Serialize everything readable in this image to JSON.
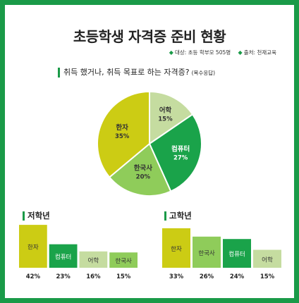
{
  "header": {
    "title": "초등학생 자격증 준비 현황",
    "meta": [
      {
        "label": "대상: 초등 학부모 505명"
      },
      {
        "label": "출처: 천재교육"
      }
    ],
    "question": "취득 했거나, 취득 목표로 하는 자격증?",
    "question_note": "(복수응답)"
  },
  "chart_data": [
    {
      "type": "pie",
      "title": "취득 했거나, 취득 목표로 하는 자격증?",
      "categories": [
        "어학",
        "컴퓨터",
        "한국사",
        "한자"
      ],
      "values": [
        15,
        27,
        20,
        35
      ],
      "labels": [
        "15%",
        "27%",
        "20%",
        "35%"
      ],
      "colors": [
        "#c5dca0",
        "#1aa34a",
        "#8fcc5a",
        "#cccc14"
      ]
    },
    {
      "type": "bar",
      "title": "저학년",
      "categories": [
        "한자",
        "컴퓨터",
        "어학",
        "한국사"
      ],
      "values": [
        42,
        23,
        16,
        15
      ],
      "labels": [
        "42%",
        "23%",
        "16%",
        "15%"
      ],
      "colors": [
        "#cccc14",
        "#1aa34a",
        "#c5dca0",
        "#8fcc5a"
      ]
    },
    {
      "type": "bar",
      "title": "고학년",
      "categories": [
        "한자",
        "한국사",
        "컴퓨터",
        "어학"
      ],
      "values": [
        33,
        26,
        24,
        15
      ],
      "labels": [
        "33%",
        "26%",
        "24%",
        "15%"
      ],
      "colors": [
        "#cccc14",
        "#8fcc5a",
        "#1aa34a",
        "#c5dca0"
      ]
    }
  ]
}
